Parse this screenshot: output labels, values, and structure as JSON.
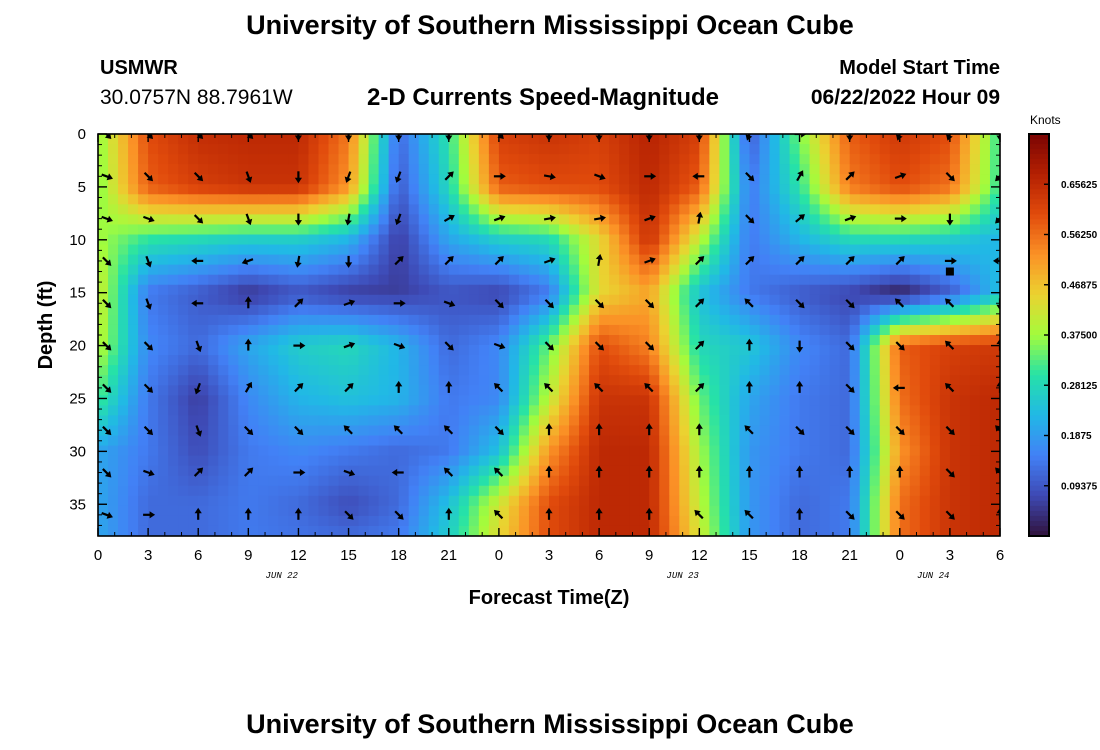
{
  "header": {
    "title": "University of Southern Mississippi Ocean Cube",
    "station": "USMWR",
    "coordinates": "30.0757N  88.7961W",
    "subtitle": "2-D Currents Speed-Magnitude",
    "model_start_label": "Model Start Time",
    "model_start_value": "06/22/2022 Hour 09"
  },
  "footer": {
    "title": "University of Southern Mississippi Ocean Cube"
  },
  "chart_data": {
    "type": "heatmap",
    "xlabel": "Forecast Time(Z)",
    "ylabel": "Depth (ft)",
    "x_tick_labels": [
      "0",
      "3",
      "6",
      "9",
      "12",
      "15",
      "18",
      "21",
      "0",
      "3",
      "6",
      "9",
      "12",
      "15",
      "18",
      "21",
      "0",
      "3",
      "6"
    ],
    "date_labels": [
      {
        "label": "JUN 22",
        "hour": 11
      },
      {
        "label": "JUN 23",
        "hour": 35
      },
      {
        "label": "JUN 24",
        "hour": 50
      }
    ],
    "xlim": [
      0,
      54
    ],
    "y_ticks": [
      0,
      5,
      10,
      15,
      20,
      25,
      30,
      35
    ],
    "ylim": [
      0,
      38
    ],
    "colorbar": {
      "title": "Knots",
      "min": 0,
      "max": 0.75,
      "tick_values": [
        0.09375,
        0.1875,
        0.28125,
        0.375,
        0.46875,
        0.5625,
        0.65625
      ],
      "tick_labels": [
        "0.09375",
        "0.1875",
        "0.28125",
        "0.37500",
        "0.46875",
        "0.56250",
        "0.65625"
      ]
    },
    "speed_field_knots": {
      "x_hours": [
        0,
        3,
        6,
        9,
        12,
        15,
        18,
        21,
        24,
        27,
        30,
        33,
        36,
        39,
        42,
        45,
        48,
        51,
        54
      ],
      "depths_ft": [
        0,
        5,
        10,
        15,
        20,
        25,
        30,
        35,
        38
      ],
      "values": [
        [
          0.36,
          0.6,
          0.65,
          0.66,
          0.66,
          0.55,
          0.12,
          0.3,
          0.62,
          0.64,
          0.62,
          0.67,
          0.62,
          0.1,
          0.35,
          0.58,
          0.63,
          0.6,
          0.3
        ],
        [
          0.35,
          0.58,
          0.62,
          0.64,
          0.64,
          0.52,
          0.1,
          0.28,
          0.58,
          0.6,
          0.6,
          0.66,
          0.58,
          0.14,
          0.3,
          0.55,
          0.6,
          0.56,
          0.3
        ],
        [
          0.38,
          0.3,
          0.28,
          0.26,
          0.26,
          0.22,
          0.06,
          0.2,
          0.26,
          0.28,
          0.44,
          0.64,
          0.4,
          0.14,
          0.22,
          0.28,
          0.28,
          0.26,
          0.22
        ],
        [
          0.42,
          0.14,
          0.1,
          0.05,
          0.09,
          0.06,
          0.06,
          0.09,
          0.07,
          0.14,
          0.44,
          0.5,
          0.24,
          0.14,
          0.1,
          0.07,
          0.02,
          0.1,
          0.24
        ],
        [
          0.4,
          0.16,
          0.12,
          0.2,
          0.26,
          0.28,
          0.22,
          0.12,
          0.16,
          0.34,
          0.6,
          0.54,
          0.28,
          0.25,
          0.16,
          0.12,
          0.58,
          0.62,
          0.63
        ],
        [
          0.32,
          0.14,
          0.06,
          0.16,
          0.22,
          0.24,
          0.22,
          0.14,
          0.16,
          0.4,
          0.64,
          0.64,
          0.34,
          0.2,
          0.14,
          0.12,
          0.56,
          0.64,
          0.66
        ],
        [
          0.2,
          0.14,
          0.08,
          0.14,
          0.16,
          0.14,
          0.12,
          0.14,
          0.24,
          0.52,
          0.66,
          0.66,
          0.38,
          0.18,
          0.14,
          0.12,
          0.52,
          0.64,
          0.66
        ],
        [
          0.2,
          0.12,
          0.12,
          0.14,
          0.12,
          0.08,
          0.12,
          0.24,
          0.42,
          0.6,
          0.66,
          0.66,
          0.4,
          0.18,
          0.12,
          0.14,
          0.56,
          0.64,
          0.66
        ],
        [
          0.2,
          0.12,
          0.12,
          0.14,
          0.13,
          0.12,
          0.14,
          0.26,
          0.44,
          0.6,
          0.66,
          0.66,
          0.42,
          0.18,
          0.12,
          0.14,
          0.56,
          0.64,
          0.66
        ]
      ]
    },
    "vector_grid": {
      "x_hours": [
        0.5,
        3,
        6,
        9,
        12,
        15,
        18,
        21,
        24,
        27,
        30,
        33,
        36,
        39,
        42,
        45,
        48,
        51,
        54
      ],
      "depths_ft": [
        0,
        4,
        8,
        12,
        16,
        20,
        24,
        28,
        32,
        36
      ],
      "direction_degrees_clockwise_from_north": [
        [
          135,
          135,
          135,
          135,
          180,
          180,
          180,
          180,
          135,
          180,
          180,
          180,
          180,
          200,
          90,
          180,
          200,
          200,
          180
        ],
        [
          110,
          135,
          135,
          160,
          180,
          200,
          200,
          45,
          90,
          100,
          110,
          90,
          270,
          135,
          30,
          45,
          70,
          135,
          225
        ],
        [
          110,
          110,
          135,
          160,
          180,
          190,
          200,
          60,
          70,
          80,
          80,
          70,
          10,
          135,
          50,
          70,
          90,
          180,
          225
        ],
        [
          135,
          160,
          270,
          250,
          190,
          180,
          45,
          45,
          45,
          70,
          10,
          70,
          45,
          45,
          45,
          45,
          45,
          90,
          270
        ],
        [
          135,
          160,
          270,
          0,
          45,
          70,
          90,
          110,
          135,
          135,
          135,
          135,
          45,
          315,
          135,
          135,
          315,
          315,
          180
        ],
        [
          135,
          135,
          160,
          0,
          90,
          70,
          110,
          135,
          110,
          135,
          135,
          135,
          45,
          0,
          180,
          135,
          135,
          315,
          0
        ],
        [
          135,
          135,
          200,
          30,
          45,
          45,
          0,
          0,
          315,
          315,
          315,
          315,
          45,
          0,
          0,
          135,
          270,
          315,
          0
        ],
        [
          135,
          135,
          160,
          135,
          135,
          315,
          315,
          315,
          135,
          0,
          0,
          0,
          0,
          315,
          135,
          135,
          135,
          135,
          315
        ],
        [
          135,
          110,
          45,
          45,
          90,
          110,
          270,
          315,
          315,
          0,
          0,
          0,
          0,
          0,
          0,
          0,
          0,
          135,
          315
        ],
        [
          110,
          90,
          0,
          0,
          0,
          135,
          135,
          0,
          315,
          0,
          0,
          0,
          315,
          315,
          0,
          135,
          135,
          135,
          0
        ]
      ]
    },
    "marks": [
      {
        "type": "square",
        "hour": 51,
        "depth_ft": 13,
        "color": "#000000"
      }
    ],
    "colors": {
      "axis": "#000000",
      "arrow": "#000000"
    }
  }
}
